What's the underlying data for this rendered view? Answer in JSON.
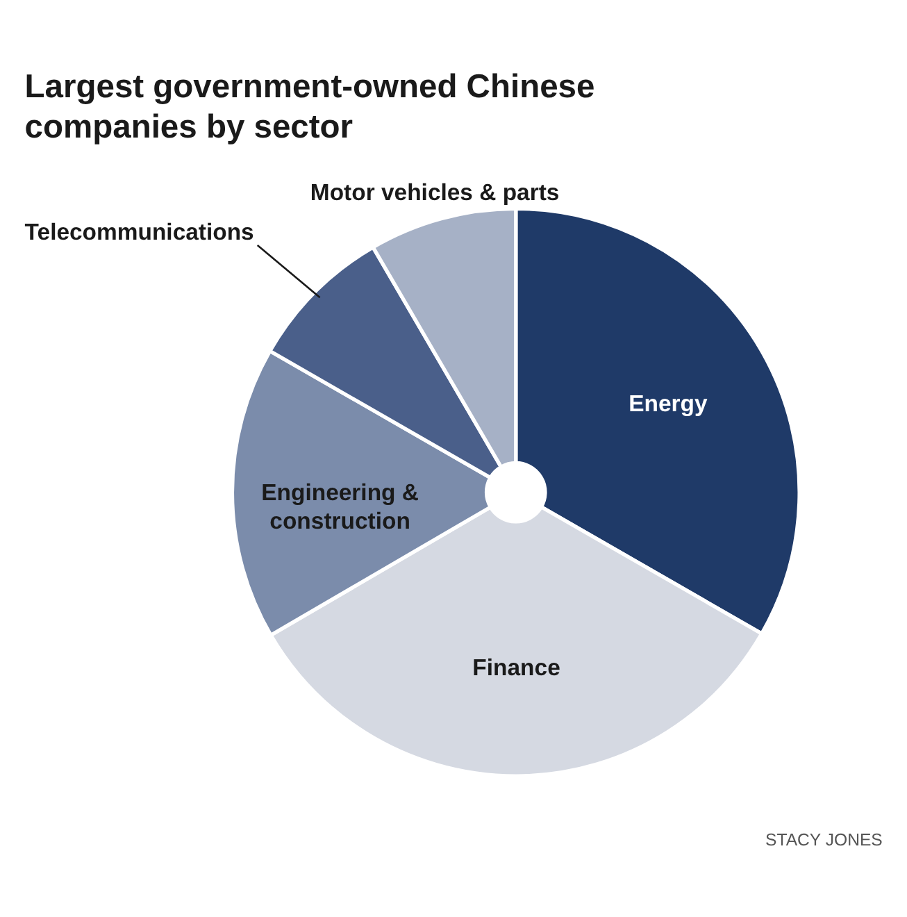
{
  "chart_data": {
    "type": "pie",
    "title": "Largest government-owned Chinese companies by sector",
    "categories": [
      "Energy",
      "Finance",
      "Engineering & construction",
      "Telecommunications",
      "Motor vehicles & parts"
    ],
    "values": [
      33.3,
      33.3,
      16.7,
      8.3,
      8.4
    ],
    "colors": [
      "#1f3a68",
      "#d5d9e2",
      "#7b8cab",
      "#4a5f8a",
      "#a6b1c6"
    ],
    "annotations": [
      "STACY JONES"
    ]
  }
}
